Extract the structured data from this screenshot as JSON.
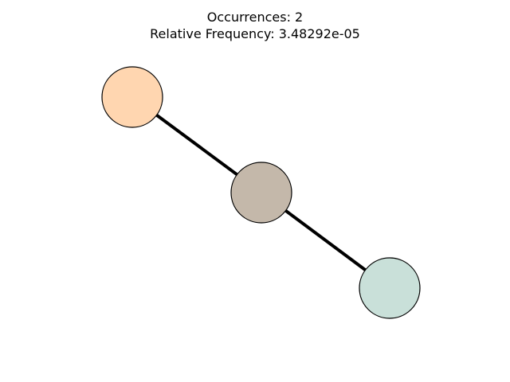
{
  "title": {
    "line1": "Occurrences: 2",
    "line2": "Relative Frequency: 3.48292e-05"
  },
  "graph": {
    "nodes": [
      {
        "id": "node-1",
        "color": "#FFD6B0"
      },
      {
        "id": "node-2",
        "color": "#C4B8AA"
      },
      {
        "id": "node-3",
        "color": "#C9E0D9"
      }
    ],
    "edges": [
      {
        "from": "node-1",
        "to": "node-2"
      },
      {
        "from": "node-2",
        "to": "node-3"
      }
    ],
    "edge_color": "#000000",
    "node_outline_color": "#000000"
  }
}
